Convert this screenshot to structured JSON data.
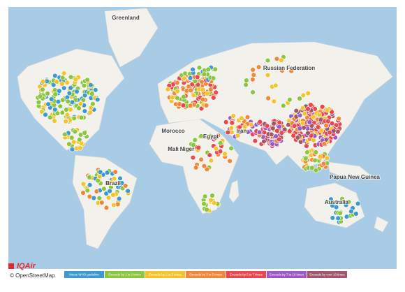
{
  "map": {
    "labels": [
      "Greenland",
      "Russian Federation",
      "Egypt",
      "Iran",
      "Niger",
      "Mali",
      "Brazil",
      "Australia",
      "Papua New Guinea",
      "Morocco"
    ],
    "legend": [
      {
        "label": "Meets WHO guideline",
        "color": "#3d9ad1"
      },
      {
        "label": "Exceeds by 1 to 2 times",
        "color": "#8cc640"
      },
      {
        "label": "Exceeds by 2 to 3 times",
        "color": "#f5c32c"
      },
      {
        "label": "Exceeds by 3 to 5 times",
        "color": "#f0873a"
      },
      {
        "label": "Exceeds by 5 to 7 times",
        "color": "#e8484f"
      },
      {
        "label": "Exceeds by 7 to 10 times",
        "color": "#9a5bc6"
      },
      {
        "label": "Exceeds by over 10 times",
        "color": "#a0596a"
      }
    ],
    "logo": "IQAir",
    "attribution": "© OpenStreetMap"
  }
}
